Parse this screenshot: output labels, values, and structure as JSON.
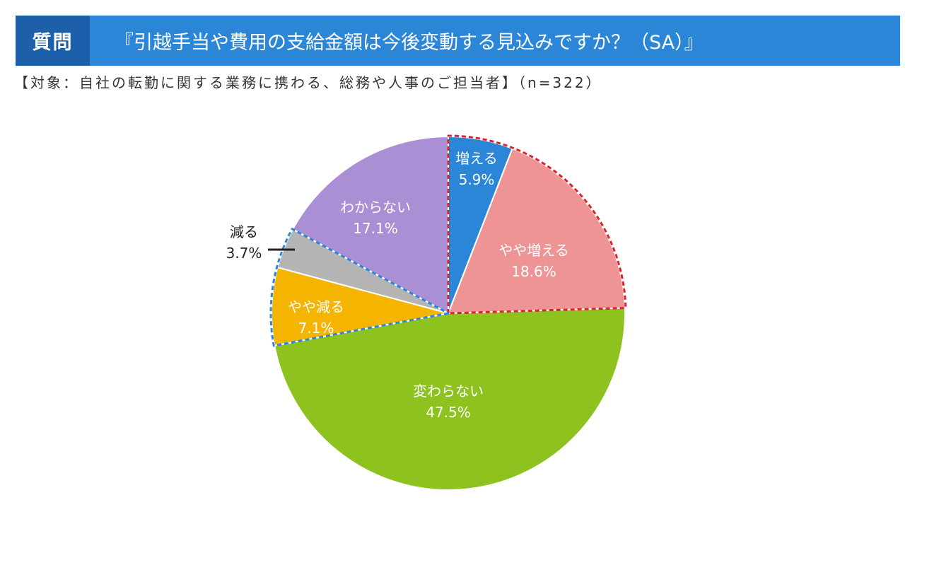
{
  "header": {
    "tag": "質問",
    "title": "『引越手当や費用の支給金額は今後変動する見込みですか？（SA）』"
  },
  "subtitle": "【対象：自社の転勤に関する業務に携わる、総務や人事のご担当者】（n=322）",
  "chart_data": {
    "type": "pie",
    "title": "『引越手当や費用の支給金額は今後変動する見込みですか？（SA）』",
    "n": 322,
    "start": "12 o'clock",
    "direction": "clockwise",
    "slices": [
      {
        "name": "増える",
        "value": 5.9,
        "label": "5.9%",
        "color": "#2b86d8",
        "label_color": "#ffffff",
        "group": "increase"
      },
      {
        "name": "やや増える",
        "value": 18.6,
        "label": "18.6%",
        "color": "#ee9494",
        "label_color": "#ffffff",
        "group": "increase"
      },
      {
        "name": "変わらない",
        "value": 47.5,
        "label": "47.5%",
        "color": "#8dc21f",
        "label_color": "#ffffff",
        "group": ""
      },
      {
        "name": "やや減る",
        "value": 7.1,
        "label": "7.1%",
        "color": "#f5b400",
        "label_color": "#ffffff",
        "group": "decrease"
      },
      {
        "name": "減る",
        "value": 3.7,
        "label": "3.7%",
        "color": "#b4b4b4",
        "label_color": "#222222",
        "group": "decrease",
        "label_outside": true
      },
      {
        "name": "わからない",
        "value": 17.1,
        "label": "17.1%",
        "color": "#ab8fd4",
        "label_color": "#ffffff",
        "group": ""
      }
    ],
    "groups": {
      "increase": {
        "outline_color": "#d9232d",
        "style": "dashed"
      },
      "decrease": {
        "outline_color": "#2b86d8",
        "style": "dashed"
      }
    }
  }
}
